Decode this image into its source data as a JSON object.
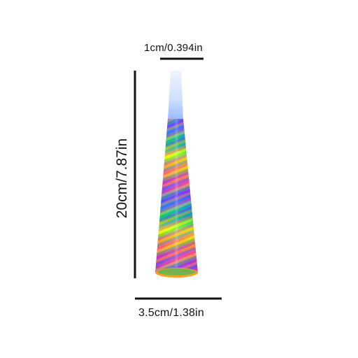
{
  "dimensions": {
    "width_label": "1cm/0.394in",
    "height_label": "20cm/7.87in",
    "base_label": "3.5cm/1.38in"
  },
  "product": {
    "colors": {
      "tip": "#dfe8ff",
      "blue": "#1d73ff",
      "purple": "#7a2cff",
      "magenta": "#ff3d93",
      "orange": "#ff9a1f",
      "yellow": "#e7ff00",
      "green": "#00c96a",
      "line": "#111111"
    }
  }
}
